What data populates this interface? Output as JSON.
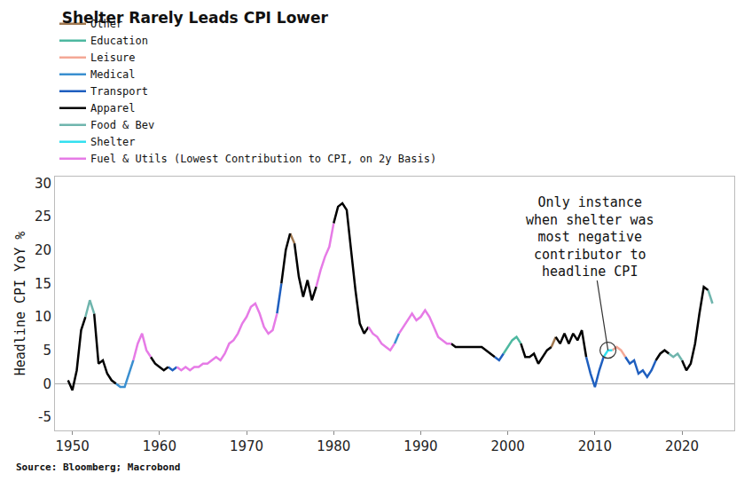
{
  "chart_data": {
    "type": "line",
    "title": "Shelter Rarely Leads CPI Lower",
    "y_label": "Headline CPI YoY %",
    "source": "Source: Bloomberg; Macrobond",
    "legend": "top left",
    "grid": false,
    "xlim": [
      1948,
      2026
    ],
    "xticks": [
      1950,
      1960,
      1970,
      1980,
      1990,
      2000,
      2010,
      2020
    ],
    "ylim": [
      -7,
      31
    ],
    "yticks": [
      -5,
      0,
      5,
      10,
      15,
      20,
      25,
      30
    ],
    "annotations": [
      {
        "text": "Only instance\nwhen shelter was\nmost negative\ncontributor to\nheadline CPI",
        "x": 2011.5,
        "y": 5
      }
    ],
    "series": [
      {
        "name": "Other",
        "color": "#a07850",
        "x": [
          1975,
          1975.5,
          1990,
          2005,
          2005.5
        ],
        "values": [
          22.5,
          21,
          null,
          5.5,
          7
        ]
      },
      {
        "name": "Education",
        "color": "#4db8a0",
        "x": [
          1999.5,
          2000,
          2000.5,
          2001,
          2001.5
        ],
        "values": [
          4.5,
          5.5,
          6.5,
          7,
          6
        ]
      },
      {
        "name": "Leisure",
        "color": "#f4a896",
        "x": [
          2012,
          2012.5,
          2013,
          2013.5
        ],
        "values": [
          5,
          5.5,
          5,
          4
        ]
      },
      {
        "name": "Medical",
        "color": "#3a8fd0",
        "x": [
          1955,
          1955.5,
          1956,
          1956.5,
          1957,
          1970,
          1987,
          1987.5
        ],
        "values": [
          0,
          -0.5,
          -0.5,
          1.5,
          3.5,
          null,
          6,
          7.5
        ]
      },
      {
        "name": "Transport",
        "color": "#1f5fbf",
        "x": [
          1961,
          1961.5,
          1962,
          1968,
          1973.5,
          1974,
          1986,
          1998.5,
          1999,
          1999.5,
          2004,
          2009,
          2009.5,
          2010,
          2010.5,
          2011,
          2012.25,
          2013.5,
          2014,
          2014.5,
          2015,
          2015.5,
          2016,
          2016.5,
          2017
        ],
        "values": [
          2.5,
          2,
          2.5,
          null,
          10.5,
          15,
          null,
          4,
          3.5,
          4.5,
          null,
          4,
          1.5,
          -0.5,
          2,
          4,
          null,
          4,
          3,
          3.5,
          1.5,
          2,
          1,
          2,
          3.5
        ]
      },
      {
        "name": "Apparel",
        "color": "#000000",
        "x": [
          1949.5,
          1950,
          1950.5,
          1951,
          1951.5,
          1952,
          1952.5,
          1953,
          1953.5,
          1954,
          1954.5,
          1955,
          1957,
          1959,
          1959.5,
          1960,
          1960.5,
          1961,
          1967,
          1974,
          1974.5,
          1975,
          1975.25,
          1975.5,
          1976,
          1976.5,
          1977,
          1977.5,
          1978,
          1979,
          1980,
          1980.5,
          1981,
          1981.5,
          1982,
          1982.5,
          1983,
          1983.5,
          1984,
          1989,
          1993.5,
          1994,
          1994.5,
          1995,
          1995.5,
          1996,
          1996.5,
          1997,
          1997.5,
          1998,
          1998.5,
          2000,
          2001.5,
          2002,
          2002.5,
          2003,
          2003.5,
          2004,
          2004.5,
          2005,
          2005.25,
          2005.5,
          2006,
          2006.5,
          2007,
          2007.5,
          2008,
          2008.5,
          2009,
          2013,
          2017,
          2017.5,
          2018,
          2018.5,
          2019,
          2020,
          2020.5,
          2021,
          2021.5,
          2022,
          2022.5,
          2023
        ],
        "values": [
          0.5,
          -1,
          2,
          8,
          10,
          null,
          10.5,
          3,
          3.5,
          1.5,
          0.5,
          0,
          null,
          4,
          3,
          2.5,
          2,
          2.5,
          null,
          15,
          20,
          22.5,
          null,
          21,
          16,
          13,
          15.5,
          12.5,
          14.5,
          null,
          24,
          26.5,
          27,
          26,
          20,
          14,
          9,
          7.5,
          8.5,
          null,
          6,
          5.5,
          5.5,
          5.5,
          5.5,
          5.5,
          5.5,
          5.5,
          5,
          4.5,
          4,
          null,
          6,
          4,
          4,
          4.5,
          3,
          4,
          5,
          5.5,
          null,
          7,
          6,
          7.5,
          6,
          7.5,
          6.5,
          8,
          4,
          null,
          3.5,
          4.5,
          5,
          4.5,
          null,
          3.5,
          2,
          3,
          6,
          10.5,
          14.5,
          14
        ]
      },
      {
        "name": "Food & Bev",
        "color": "#6fb5ad",
        "x": [
          1951.5,
          1952,
          1952.5,
          1985,
          2018.5,
          2019,
          2019.5,
          2020,
          2021.5,
          2023,
          2023.5
        ],
        "values": [
          10,
          12.5,
          10.5,
          null,
          4.5,
          4,
          4.5,
          3.5,
          null,
          14,
          12
        ]
      },
      {
        "name": "Shelter",
        "color": "#33e0f0",
        "x": [
          2011,
          2011.5,
          2012
        ],
        "values": [
          4,
          5,
          5
        ]
      },
      {
        "name": "Fuel & Utils (Lowest Contribution to CPI, on 2y Basis)",
        "color": "#e67be6",
        "x": [
          1957,
          1957.5,
          1958,
          1958.5,
          1959,
          1960.5,
          1962,
          1962.5,
          1963,
          1963.5,
          1964,
          1964.5,
          1965,
          1965.5,
          1966,
          1966.5,
          1967,
          1967.5,
          1968,
          1968.5,
          1969,
          1969.5,
          1970,
          1970.5,
          1971,
          1971.5,
          1972,
          1972.5,
          1973,
          1973.5,
          1976,
          1978,
          1978.5,
          1979,
          1979.5,
          1980,
          1982,
          1984,
          1984.5,
          1985,
          1985.5,
          1986,
          1986.5,
          1987,
          1987.25,
          1987.5,
          1988,
          1988.5,
          1989,
          1989.5,
          1990,
          1990.5,
          1991,
          1991.5,
          1992,
          1992.5,
          1993,
          1993.5
        ],
        "values": [
          3.5,
          6,
          7.5,
          5,
          4,
          null,
          2.5,
          2,
          2.5,
          2,
          2.5,
          2.5,
          3,
          3,
          3.5,
          4,
          3.5,
          4.5,
          6,
          6.5,
          7.5,
          9,
          10,
          11.5,
          12,
          10.5,
          8.5,
          7.5,
          8,
          10.5,
          null,
          14.5,
          17,
          19,
          20.5,
          24,
          null,
          8.5,
          7.5,
          7,
          6,
          5.5,
          5,
          6,
          null,
          7.5,
          8.5,
          9.5,
          10.5,
          9.5,
          10,
          11,
          10,
          8.5,
          7,
          6.5,
          6,
          6
        ]
      }
    ]
  }
}
